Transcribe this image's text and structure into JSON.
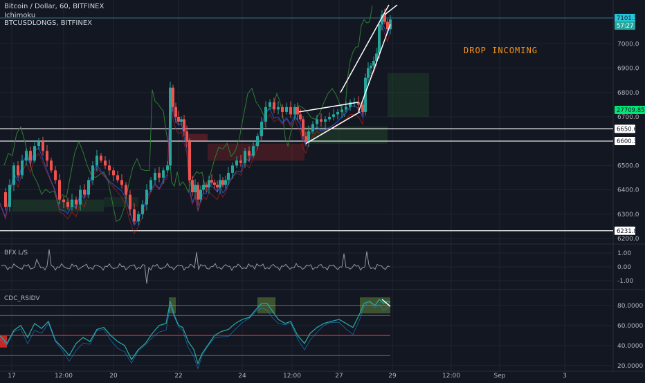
{
  "header": {
    "symbol_line": "Bitcoin / Dollar, 60, BITFINEX",
    "indicator_1": "Ichimoku",
    "indicator_2": "BTCUSDLONGS, BITFINEX"
  },
  "annotation": {
    "text": "DROP INCOMING",
    "color": "#f7931a"
  },
  "colors": {
    "background": "#131722",
    "grid": "#1f2430",
    "up_candle": "#26a69a",
    "down_candle": "#ef5350",
    "text": "#b2b5be",
    "hline": "#ffffff",
    "indicator_green": "#2e7d32",
    "indicator_blue": "#2962ff",
    "accent_green": "#00e676"
  },
  "chart_data": [
    {
      "type": "candlestick",
      "panel": "price",
      "title": "Bitcoin / Dollar, 60, BITFINEX",
      "ylim": [
        6180,
        7180
      ],
      "y_ticks": [
        "7000.0",
        "6900.0",
        "6800.0",
        "6700.0",
        "6500.0",
        "6400.0",
        "6300.0",
        "6200.0"
      ],
      "y_tick_values": [
        7000,
        6900,
        6800,
        6700,
        6500,
        6400,
        6300,
        6200
      ],
      "x_ticks": [
        "17",
        "12:00",
        "20",
        "22",
        "24",
        "12:00",
        "27",
        "29",
        "12:00",
        "Sep",
        "3"
      ],
      "price_labels": [
        {
          "value": "7101.1",
          "style": "current"
        },
        {
          "value": "57:27",
          "style": "timer"
        },
        {
          "value": "27709.8540",
          "style": "indicator"
        },
        {
          "value": "6650.6",
          "style": "level"
        },
        {
          "value": "6600.3",
          "style": "level"
        },
        {
          "value": "6231.8",
          "style": "level"
        }
      ],
      "horizontal_levels": [
        6650.6,
        6600.3,
        6231.8
      ],
      "close_path": [
        [
          0,
          6390
        ],
        [
          8,
          6330
        ],
        [
          14,
          6420
        ],
        [
          20,
          6500
        ],
        [
          26,
          6460
        ],
        [
          32,
          6520
        ],
        [
          38,
          6560
        ],
        [
          44,
          6520
        ],
        [
          50,
          6580
        ],
        [
          56,
          6600
        ],
        [
          62,
          6560
        ],
        [
          68,
          6520
        ],
        [
          74,
          6480
        ],
        [
          80,
          6440
        ],
        [
          86,
          6360
        ],
        [
          92,
          6350
        ],
        [
          98,
          6330
        ],
        [
          104,
          6360
        ],
        [
          110,
          6340
        ],
        [
          116,
          6400
        ],
        [
          122,
          6380
        ],
        [
          128,
          6440
        ],
        [
          134,
          6500
        ],
        [
          140,
          6540
        ],
        [
          146,
          6520
        ],
        [
          152,
          6500
        ],
        [
          158,
          6480
        ],
        [
          164,
          6460
        ],
        [
          170,
          6440
        ],
        [
          176,
          6420
        ],
        [
          182,
          6380
        ],
        [
          188,
          6320
        ],
        [
          194,
          6270
        ],
        [
          200,
          6300
        ],
        [
          206,
          6340
        ],
        [
          212,
          6400
        ],
        [
          218,
          6440
        ],
        [
          224,
          6470
        ],
        [
          230,
          6450
        ],
        [
          236,
          6480
        ],
        [
          242,
          6500
        ],
        [
          246,
          6820
        ],
        [
          250,
          6740
        ],
        [
          254,
          6700
        ],
        [
          258,
          6680
        ],
        [
          262,
          6690
        ],
        [
          266,
          6640
        ],
        [
          270,
          6600
        ],
        [
          274,
          6440
        ],
        [
          278,
          6390
        ],
        [
          282,
          6420
        ],
        [
          286,
          6360
        ],
        [
          290,
          6400
        ],
        [
          294,
          6420
        ],
        [
          298,
          6410
        ],
        [
          302,
          6440
        ],
        [
          306,
          6430
        ],
        [
          310,
          6420
        ],
        [
          314,
          6410
        ],
        [
          318,
          6440
        ],
        [
          322,
          6420
        ],
        [
          326,
          6440
        ],
        [
          330,
          6470
        ],
        [
          336,
          6500
        ],
        [
          342,
          6520
        ],
        [
          348,
          6510
        ],
        [
          354,
          6560
        ],
        [
          360,
          6540
        ],
        [
          366,
          6580
        ],
        [
          372,
          6620
        ],
        [
          378,
          6680
        ],
        [
          384,
          6740
        ],
        [
          390,
          6760
        ],
        [
          396,
          6730
        ],
        [
          402,
          6740
        ],
        [
          408,
          6720
        ],
        [
          414,
          6740
        ],
        [
          420,
          6710
        ],
        [
          426,
          6740
        ],
        [
          430,
          6710
        ],
        [
          434,
          6690
        ],
        [
          438,
          6620
        ],
        [
          442,
          6600
        ],
        [
          446,
          6640
        ],
        [
          452,
          6670
        ],
        [
          458,
          6690
        ],
        [
          464,
          6680
        ],
        [
          470,
          6690
        ],
        [
          476,
          6700
        ],
        [
          482,
          6710
        ],
        [
          488,
          6720
        ],
        [
          494,
          6730
        ],
        [
          500,
          6740
        ],
        [
          506,
          6760
        ],
        [
          512,
          6760
        ],
        [
          518,
          6750
        ],
        [
          524,
          6720
        ],
        [
          528,
          6860
        ],
        [
          532,
          6900
        ],
        [
          536,
          6910
        ],
        [
          540,
          6930
        ],
        [
          544,
          6960
        ],
        [
          548,
          7080
        ],
        [
          552,
          7120
        ],
        [
          556,
          7090
        ],
        [
          560,
          7060
        ],
        [
          564,
          7100
        ]
      ],
      "drawn_lines": [
        {
          "name": "wedge-lower",
          "points": [
            [
              442,
              6590
            ],
            [
              520,
              6720
            ]
          ]
        },
        {
          "name": "wedge-upper",
          "points": [
            [
              432,
              6720
            ],
            [
              518,
              6760
            ]
          ]
        },
        {
          "name": "channel-lower",
          "points": [
            [
              518,
              6720
            ],
            [
              564,
              7080
            ]
          ]
        },
        {
          "name": "channel-upper",
          "points": [
            [
              492,
              6800
            ],
            [
              562,
              7160
            ]
          ]
        },
        {
          "name": "channel-upper-2",
          "points": [
            [
              556,
              7120
            ],
            [
              574,
              7160
            ]
          ]
        }
      ]
    },
    {
      "type": "line",
      "panel": "longs",
      "title": "BFX L/S",
      "ylim": [
        -1.6,
        1.6
      ],
      "y_ticks": [
        "1.00",
        "0.00",
        "-1.00"
      ],
      "y_tick_values": [
        1.0,
        0.0,
        -1.0
      ]
    },
    {
      "type": "line",
      "panel": "rsi",
      "title": "CDC_RSIDV",
      "ylim": [
        15,
        95
      ],
      "y_ticks": [
        "80.0000",
        "60.0000",
        "40.0000",
        "20.0000"
      ],
      "y_tick_values": [
        80,
        60,
        40,
        20
      ],
      "levels": [
        80,
        70,
        50,
        30
      ],
      "rsi_path": [
        [
          0,
          50
        ],
        [
          10,
          42
        ],
        [
          20,
          55
        ],
        [
          30,
          60
        ],
        [
          40,
          48
        ],
        [
          50,
          62
        ],
        [
          60,
          57
        ],
        [
          70,
          64
        ],
        [
          80,
          45
        ],
        [
          90,
          38
        ],
        [
          100,
          30
        ],
        [
          110,
          42
        ],
        [
          120,
          48
        ],
        [
          130,
          44
        ],
        [
          140,
          56
        ],
        [
          150,
          58
        ],
        [
          160,
          50
        ],
        [
          170,
          44
        ],
        [
          180,
          40
        ],
        [
          190,
          26
        ],
        [
          200,
          36
        ],
        [
          210,
          42
        ],
        [
          220,
          52
        ],
        [
          230,
          60
        ],
        [
          240,
          62
        ],
        [
          246,
          84
        ],
        [
          252,
          70
        ],
        [
          258,
          60
        ],
        [
          264,
          58
        ],
        [
          272,
          44
        ],
        [
          280,
          36
        ],
        [
          286,
          22
        ],
        [
          292,
          32
        ],
        [
          300,
          40
        ],
        [
          310,
          50
        ],
        [
          320,
          54
        ],
        [
          330,
          56
        ],
        [
          340,
          62
        ],
        [
          350,
          66
        ],
        [
          360,
          68
        ],
        [
          370,
          76
        ],
        [
          378,
          82
        ],
        [
          386,
          82
        ],
        [
          394,
          74
        ],
        [
          402,
          66
        ],
        [
          412,
          62
        ],
        [
          420,
          64
        ],
        [
          430,
          50
        ],
        [
          440,
          42
        ],
        [
          448,
          52
        ],
        [
          458,
          58
        ],
        [
          468,
          62
        ],
        [
          478,
          64
        ],
        [
          490,
          66
        ],
        [
          500,
          62
        ],
        [
          510,
          58
        ],
        [
          520,
          72
        ],
        [
          526,
          82
        ],
        [
          534,
          84
        ],
        [
          542,
          80
        ],
        [
          548,
          86
        ],
        [
          554,
          82
        ],
        [
          560,
          84
        ],
        [
          564,
          83
        ]
      ],
      "divergence_line": [
        [
          552,
          86
        ],
        [
          564,
          79
        ]
      ]
    }
  ]
}
